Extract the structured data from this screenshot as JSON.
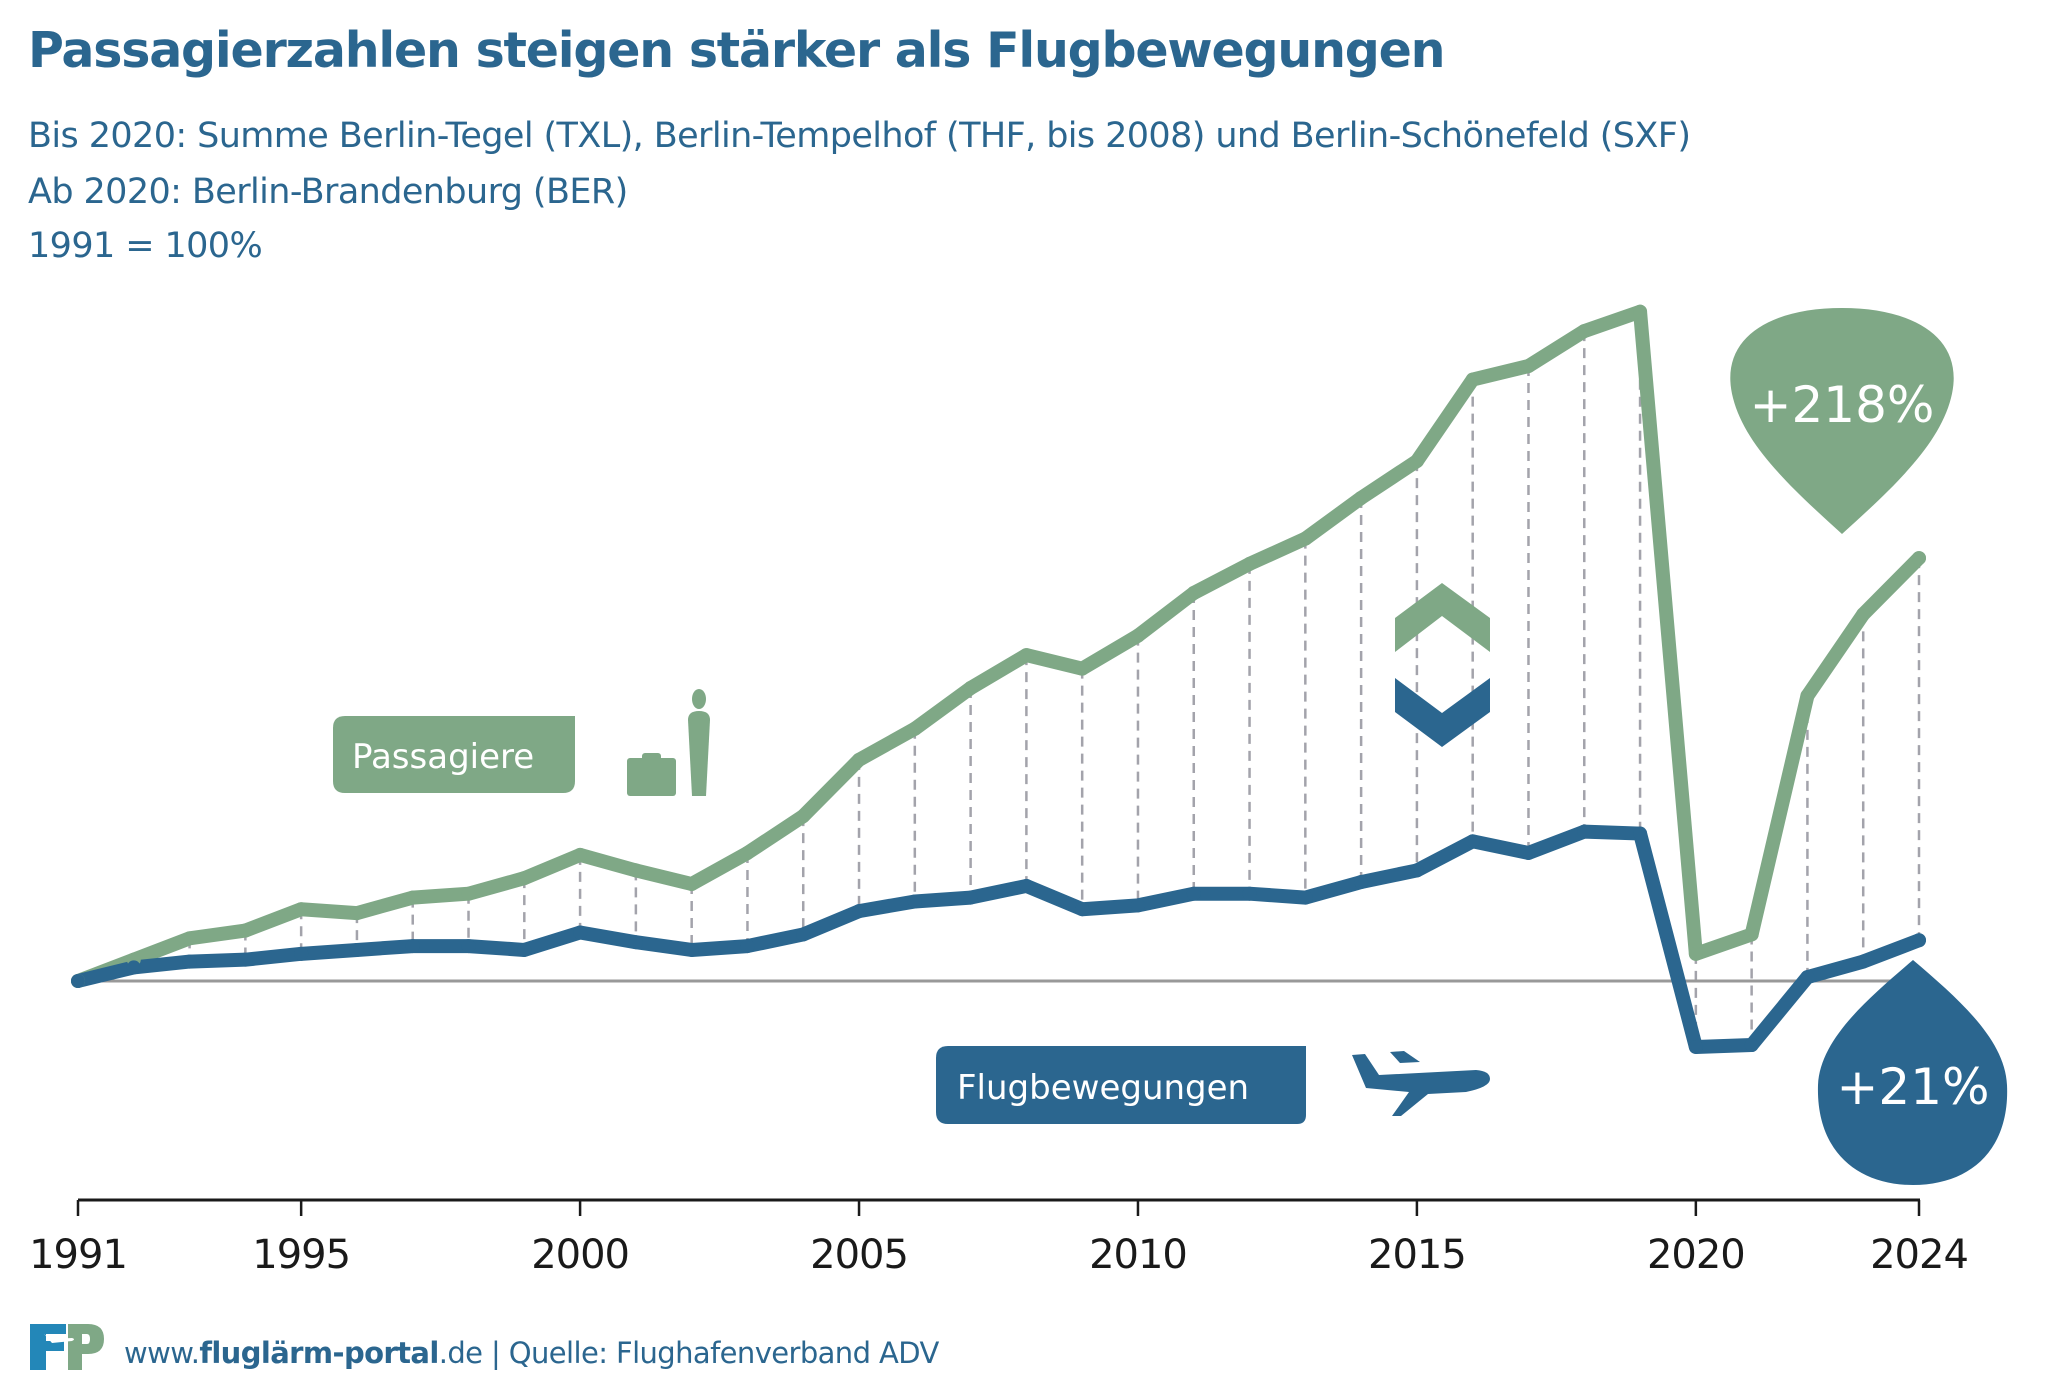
{
  "header": {
    "title": "Passagierzahlen steigen stärker als Flugbewegungen",
    "subtitle_lines": [
      "Bis 2020: Summe Berlin-Tegel (TXL), Berlin-Tempelhof (THF, bis 2008) und Berlin-Schönefeld (SXF)",
      "Ab 2020: Berlin-Brandenburg (BER)",
      "1991 = 100%"
    ]
  },
  "colors": {
    "passengers": "#7fa886",
    "flights": "#2b668f",
    "title": "#2b668f",
    "baseline": "#999999",
    "dashes": "#a3a3ab",
    "axis": "#1a1a1a"
  },
  "labels": {
    "passengers": "Passagiere",
    "flights": "Flugbewegungen"
  },
  "icons": {
    "passengers": "person-with-suitcase-icon",
    "flights": "airplane-icon",
    "comparison": "chevron-up-down-icon",
    "logo": "fp-logo"
  },
  "callouts": {
    "passengers_change": "+218%",
    "flights_change": "+21%"
  },
  "footer": {
    "prefix": "www.",
    "domain_bold": "fluglärm-portal",
    "suffix": ".de",
    "separator": " | ",
    "source": "Quelle: Flughafenverband ADV"
  },
  "chart_data": {
    "type": "line",
    "title": "Passagierzahlen steigen stärker als Flugbewegungen",
    "xlabel": "",
    "ylabel": "",
    "index_base": "1991 = 100%",
    "x": [
      1991,
      1992,
      1993,
      1994,
      1995,
      1996,
      1997,
      1998,
      1999,
      2000,
      2001,
      2002,
      2003,
      2004,
      2005,
      2006,
      2007,
      2008,
      2009,
      2010,
      2011,
      2012,
      2013,
      2014,
      2015,
      2016,
      2017,
      2018,
      2019,
      2020,
      2021,
      2022,
      2023,
      2024
    ],
    "x_tick_labels": [
      "1991",
      "1995",
      "2000",
      "2005",
      "2010",
      "2015",
      "2020",
      "2024"
    ],
    "ylim": [
      45,
      460
    ],
    "grid": false,
    "baseline": 100,
    "series": [
      {
        "name": "Passagiere",
        "values": [
          100,
          111,
          122,
          126,
          137,
          135,
          143,
          145,
          153,
          165,
          157,
          150,
          166,
          185,
          214,
          230,
          251,
          268,
          261,
          278,
          300,
          315,
          328,
          349,
          368,
          410,
          417,
          435,
          445,
          114,
          124,
          247,
          289,
          318
        ]
      },
      {
        "name": "Flugbewegungen",
        "values": [
          100,
          107,
          110,
          111,
          114,
          116,
          118,
          118,
          116,
          125,
          120,
          116,
          118,
          124,
          136,
          141,
          143,
          149,
          137,
          139,
          145,
          145,
          143,
          151,
          157,
          172,
          166,
          177,
          176,
          66,
          67,
          102,
          110,
          121
        ]
      }
    ],
    "annotations": [
      "+218%",
      "+21%"
    ],
    "legend": "inline-labels"
  }
}
